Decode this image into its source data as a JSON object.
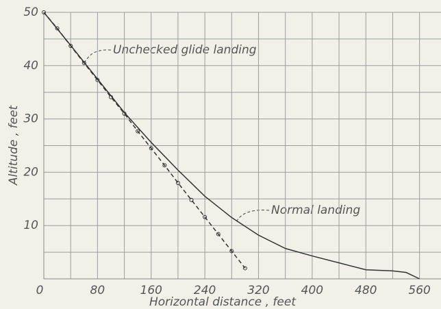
{
  "chart_data": {
    "type": "line",
    "x_label": "Horizontal distance , feet",
    "y_label": "Altitude , feet",
    "xlim": [
      0,
      592
    ],
    "ylim": [
      0,
      50
    ],
    "xticks": [
      0,
      80,
      160,
      240,
      320,
      400,
      480,
      560
    ],
    "yticks": [
      10,
      20,
      30,
      40,
      50
    ],
    "x_origin_label": "0",
    "xgrid": [
      40,
      80,
      120,
      160,
      200,
      240,
      280,
      320,
      360,
      400,
      440,
      480,
      520,
      560
    ],
    "ygrid": [
      5,
      10,
      15,
      20,
      25,
      30,
      35,
      40,
      45,
      50
    ],
    "grid": true,
    "series": [
      {
        "name": "Normal landing",
        "color": "#333333",
        "dash": false,
        "markers": false,
        "x": [
          0,
          40,
          80,
          120,
          160,
          200,
          240,
          280,
          320,
          360,
          400,
          440,
          480,
          520,
          540,
          560
        ],
        "values": [
          50,
          43.8,
          37.5,
          31.2,
          25.6,
          20.4,
          15.5,
          11.5,
          8.2,
          5.7,
          4.3,
          3,
          1.7,
          1.5,
          1.2,
          0
        ]
      },
      {
        "name": "Unchecked glide landing",
        "color": "#333333",
        "dash": true,
        "markers": true,
        "x": [
          0,
          20,
          40,
          60,
          80,
          100,
          120,
          140,
          160,
          180,
          200,
          220,
          240,
          260,
          280,
          300
        ],
        "values": [
          50,
          47,
          43.7,
          40.5,
          37.3,
          34.1,
          31,
          27.7,
          24.5,
          21.3,
          18,
          14.8,
          11.6,
          8.4,
          5.2,
          2
        ]
      }
    ]
  }
}
